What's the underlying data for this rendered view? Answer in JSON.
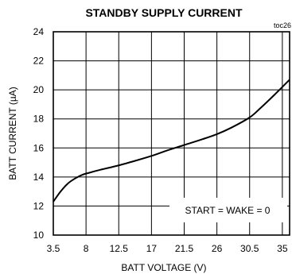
{
  "chart_data": {
    "type": "line",
    "title": "STANDBY SUPPLY CURRENT",
    "tag": "toc26",
    "xlabel": "BATT VOLTAGE (V)",
    "ylabel": "BATT CURRENT (µA)",
    "annotation": "START = WAKE = 0",
    "xlim": [
      3.5,
      36
    ],
    "ylim": [
      10,
      24
    ],
    "xticks": [
      3.5,
      8,
      12.5,
      17,
      21.5,
      26,
      30.5,
      35
    ],
    "xtick_labels": [
      "3.5",
      "8",
      "12.5",
      "17",
      "21.5",
      "26",
      "30.5",
      "35"
    ],
    "yticks": [
      10,
      12,
      14,
      16,
      18,
      20,
      22,
      24
    ],
    "ytick_labels": [
      "10",
      "12",
      "14",
      "16",
      "18",
      "20",
      "22",
      "24"
    ],
    "grid": true,
    "series": [
      {
        "color": "#000000",
        "x": [
          3.5,
          4.5,
          5.5,
          6.5,
          7.5,
          8.5,
          10,
          12.5,
          15,
          17,
          19,
          21.5,
          24,
          26,
          28,
          30.5,
          32,
          34,
          36
        ],
        "y": [
          12.3,
          13.0,
          13.55,
          13.9,
          14.15,
          14.3,
          14.5,
          14.8,
          15.15,
          15.45,
          15.8,
          16.2,
          16.6,
          16.95,
          17.4,
          18.1,
          18.75,
          19.7,
          20.7
        ]
      }
    ]
  }
}
